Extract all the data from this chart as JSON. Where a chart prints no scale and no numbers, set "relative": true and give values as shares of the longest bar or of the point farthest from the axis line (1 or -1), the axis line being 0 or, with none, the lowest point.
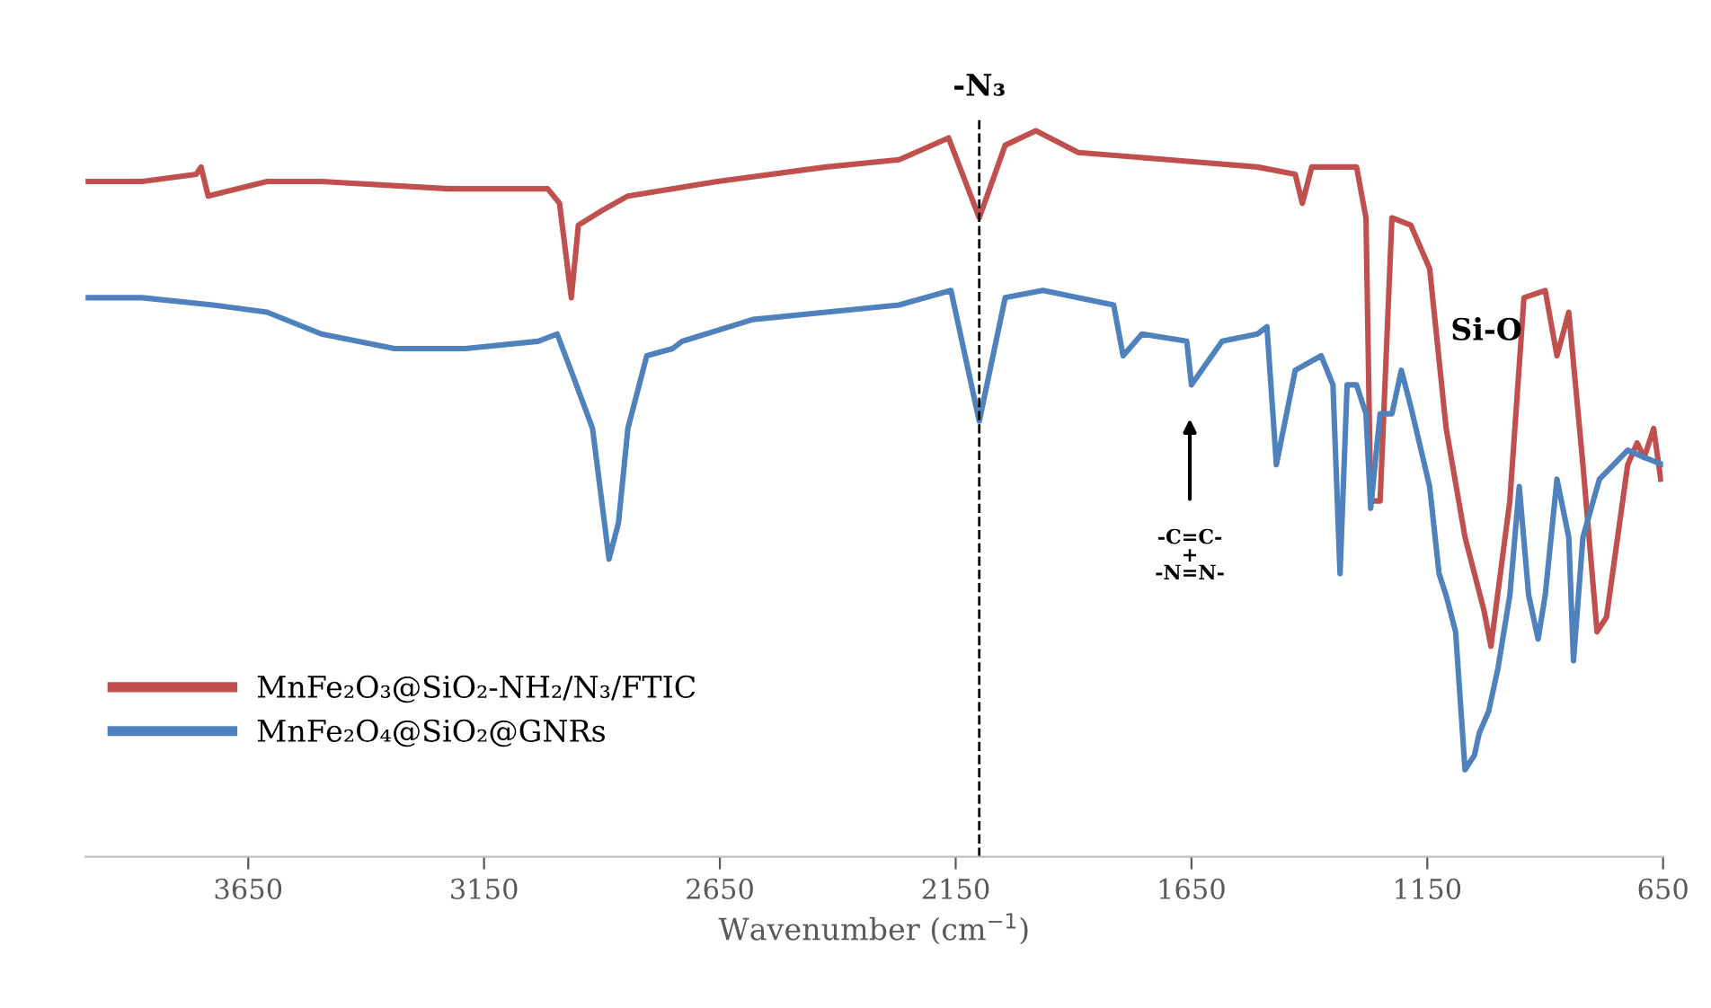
{
  "chart_data": {
    "type": "line",
    "relative": true,
    "xlabel": "Wavenumber (cm$^{−1}$)",
    "xlim": [
      3995,
      650
    ],
    "xticks": [
      3650,
      3150,
      2650,
      2150,
      1650,
      1150,
      650
    ],
    "legend": "bottom left",
    "grid": false,
    "marker": "none",
    "line_style": "solid",
    "series": [
      {
        "name": "MnFe₂O₃@SiO₂-NH₂/N₃/FTIC",
        "color": "#c0504d",
        "x": [
          3995,
          3875,
          3760,
          3750,
          3735,
          3610,
          3495,
          3225,
          3015,
          2990,
          2965,
          2950,
          2900,
          2845,
          2655,
          2425,
          2270,
          2165,
          2100,
          2045,
          1980,
          1890,
          1700,
          1510,
          1430,
          1415,
          1395,
          1335,
          1300,
          1280,
          1270,
          1250,
          1225,
          1185,
          1145,
          1110,
          1070,
          1030,
          1015,
          975,
          945,
          900,
          875,
          850,
          820,
          790,
          770,
          725,
          705,
          690,
          670,
          655
        ],
        "values": [
          0.93,
          0.93,
          0.94,
          0.95,
          0.91,
          0.93,
          0.93,
          0.92,
          0.92,
          0.9,
          0.77,
          0.87,
          0.89,
          0.91,
          0.93,
          0.95,
          0.96,
          0.99,
          0.88,
          0.98,
          1,
          0.97,
          0.96,
          0.95,
          0.94,
          0.9,
          0.95,
          0.95,
          0.95,
          0.88,
          0.49,
          0.49,
          0.88,
          0.87,
          0.81,
          0.59,
          0.44,
          0.34,
          0.29,
          0.49,
          0.77,
          0.78,
          0.69,
          0.75,
          0.54,
          0.31,
          0.33,
          0.54,
          0.57,
          0.55,
          0.59,
          0.52
        ]
      },
      {
        "name": "MnFe₂O₄@SiO₂@GNRs",
        "color": "#4f81bd",
        "x": [
          3995,
          3875,
          3725,
          3610,
          3495,
          3340,
          3190,
          3035,
          2995,
          2960,
          2920,
          2885,
          2865,
          2845,
          2805,
          2750,
          2730,
          2580,
          2425,
          2270,
          2160,
          2100,
          2045,
          1965,
          1815,
          1795,
          1755,
          1660,
          1650,
          1585,
          1510,
          1490,
          1470,
          1430,
          1375,
          1350,
          1335,
          1320,
          1300,
          1280,
          1270,
          1250,
          1225,
          1205,
          1185,
          1145,
          1125,
          1110,
          1090,
          1070,
          1050,
          1040,
          1020,
          1000,
          975,
          955,
          935,
          915,
          900,
          875,
          850,
          840,
          820,
          785,
          725,
          690,
          650
        ],
        "values": [
          0.77,
          0.77,
          0.76,
          0.75,
          0.72,
          0.7,
          0.7,
          0.71,
          0.72,
          0.66,
          0.59,
          0.41,
          0.46,
          0.59,
          0.69,
          0.7,
          0.71,
          0.74,
          0.75,
          0.76,
          0.78,
          0.6,
          0.77,
          0.78,
          0.76,
          0.69,
          0.72,
          0.71,
          0.65,
          0.71,
          0.72,
          0.73,
          0.54,
          0.67,
          0.69,
          0.65,
          0.39,
          0.65,
          0.65,
          0.61,
          0.48,
          0.61,
          0.61,
          0.67,
          0.62,
          0.51,
          0.39,
          0.36,
          0.31,
          0.12,
          0.14,
          0.17,
          0.2,
          0.26,
          0.36,
          0.51,
          0.36,
          0.3,
          0.36,
          0.52,
          0.44,
          0.27,
          0.44,
          0.52,
          0.56,
          0.55,
          0.54
        ]
      }
    ],
    "ref_lines": [
      {
        "axis": "x",
        "value": 2100,
        "label": "-N₃",
        "color": "#000000",
        "line_style": "dashed"
      }
    ],
    "annotations": [
      "-C=C-\n+\n-N=N-",
      "Si-O"
    ]
  }
}
